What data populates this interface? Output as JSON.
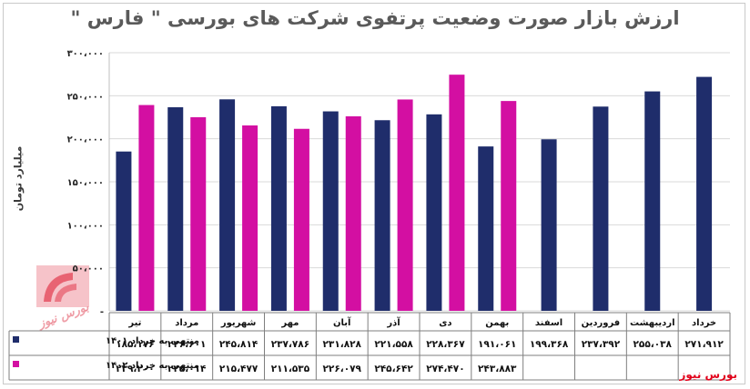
{
  "title": "ارزش بازار صورت وضعیت پرتفوی شرکت های بورسی \" فارس \"",
  "brand": "بورس نیوز",
  "watermark": "بورس نیوز",
  "colors": {
    "series1": "#1f2d6b",
    "series2": "#d30fa2",
    "grid": "#d9d9d9",
    "table_border": "#7f7f7f"
  },
  "chart_data": {
    "type": "bar",
    "title": "ارزش بازار صورت وضعیت پرتفوی شرکت های بورسی \" فارس \"",
    "ylabel": "میلیارد تومان",
    "xlabel": "",
    "ylim": [
      0,
      300000
    ],
    "yticks": [
      0,
      50000,
      100000,
      150000,
      200000,
      250000,
      300000
    ],
    "ytick_labels": [
      "-",
      "۵۰،۰۰۰",
      "۱۰۰،۰۰۰",
      "۱۵۰،۰۰۰",
      "۲۰۰،۰۰۰",
      "۲۵۰،۰۰۰",
      "۳۰۰،۰۰۰"
    ],
    "grid": true,
    "legend": "table-left",
    "categories": [
      "خرداد",
      "اردیبهشت",
      "فروردین",
      "اسفند",
      "بهمن",
      "دی",
      "آذر",
      "آبان",
      "مهر",
      "شهریور",
      "مرداد",
      "تیر"
    ],
    "series": [
      {
        "name": "منتهی به خرداد ۱۴۰۱",
        "values": [
          271912,
          255038,
          237392,
          199368,
          191061,
          228367,
          221558,
          231828,
          237786,
          245814,
          236601,
          185176
        ],
        "labels": [
          "۲۷۱،۹۱۲",
          "۲۵۵،۰۳۸",
          "۲۳۷،۳۹۲",
          "۱۹۹،۳۶۸",
          "۱۹۱،۰۶۱",
          "۲۲۸،۳۶۷",
          "۲۲۱،۵۵۸",
          "۲۳۱،۸۲۸",
          "۲۳۷،۷۸۶",
          "۲۴۵،۸۱۴",
          "۲۳۶،۶۰۱",
          "۱۸۵،۱۷۶"
        ]
      },
      {
        "name": "منتهی به خرداد ۱۴۰۲",
        "values": [
          null,
          null,
          null,
          null,
          243883,
          274470,
          245642,
          226079,
          211535,
          215477,
          225014,
          239200
        ],
        "labels": [
          "",
          "",
          "",
          "",
          "۲۴۳،۸۸۳",
          "۲۷۴،۴۷۰",
          "۲۴۵،۶۴۲",
          "۲۲۶،۰۷۹",
          "۲۱۱،۵۳۵",
          "۲۱۵،۴۷۷",
          "۲۲۵،۰۱۴",
          "۲۳۹،۲۰۰"
        ]
      }
    ]
  }
}
